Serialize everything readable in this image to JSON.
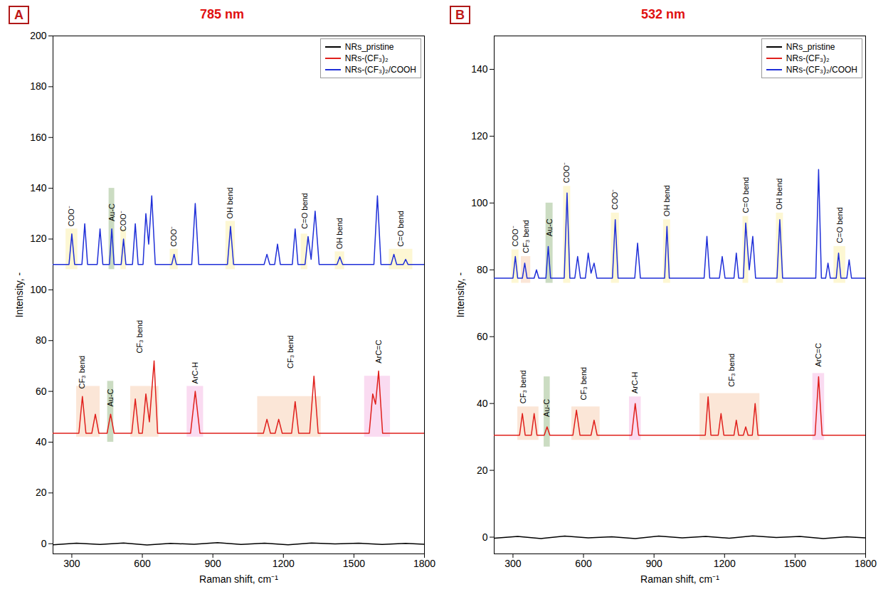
{
  "chart_data": [
    {
      "type": "line",
      "panel": "A",
      "title": "785 nm",
      "x_label": "Raman shift, cm⁻¹",
      "y_label": "Intensity, -",
      "xlim": [
        220,
        1800
      ],
      "xticks": [
        300,
        600,
        900,
        1200,
        1500,
        1800
      ],
      "ylim": [
        -4,
        200
      ],
      "yticks": [
        0,
        20,
        40,
        60,
        80,
        100,
        120,
        140,
        160,
        180,
        200
      ],
      "grid": false,
      "legend": "top-right",
      "series": [
        {
          "name": "NRs_pristine",
          "color": "#000000",
          "x": [
            220,
            320,
            420,
            520,
            620,
            720,
            820,
            920,
            1020,
            1120,
            1220,
            1320,
            1420,
            1520,
            1620,
            1720,
            1800
          ],
          "values": [
            -0.4,
            0.2,
            -0.3,
            0.3,
            -0.5,
            0.1,
            -0.2,
            0.4,
            -0.3,
            0.2,
            -0.4,
            0.3,
            -0.1,
            0.2,
            -0.3,
            0.1,
            -0.2
          ]
        },
        {
          "name": "NRs-(CF₃)₂",
          "color": "#e0201c",
          "x": [
            220,
            330,
            345,
            360,
            385,
            400,
            415,
            450,
            465,
            480,
            555,
            570,
            585,
            600,
            615,
            630,
            650,
            665,
            805,
            825,
            845,
            1115,
            1130,
            1145,
            1165,
            1180,
            1195,
            1235,
            1250,
            1265,
            1312,
            1330,
            1348,
            1565,
            1580,
            1592,
            1605,
            1622,
            1800
          ],
          "values": [
            43.5,
            43.5,
            58,
            43.5,
            43.5,
            51,
            43.5,
            43.5,
            51,
            43.5,
            43.5,
            57,
            43.5,
            43.5,
            59,
            48,
            72,
            43.5,
            43.5,
            60,
            43.5,
            43.5,
            49,
            43.5,
            43.5,
            49,
            43.5,
            43.5,
            56,
            43.5,
            43.5,
            66,
            43.5,
            43.5,
            59,
            55,
            68,
            43.5,
            43.5
          ]
        },
        {
          "name": "NRs-(CF₃)₂/COOH",
          "color": "#1f2fd8",
          "x": [
            220,
            288,
            300,
            312,
            343,
            355,
            367,
            408,
            420,
            432,
            460,
            470,
            480,
            510,
            520,
            530,
            558,
            570,
            582,
            603,
            615,
            627,
            640,
            655,
            725,
            735,
            745,
            810,
            825,
            840,
            962,
            975,
            988,
            1118,
            1130,
            1142,
            1163,
            1175,
            1187,
            1238,
            1250,
            1262,
            1292,
            1305,
            1318,
            1335,
            1352,
            1428,
            1440,
            1452,
            1585,
            1600,
            1615,
            1658,
            1670,
            1682,
            1710,
            1720,
            1730,
            1800
          ],
          "values": [
            110,
            110,
            122,
            110,
            110,
            126,
            110,
            110,
            124,
            110,
            110,
            124,
            110,
            110,
            120,
            110,
            110,
            126,
            110,
            110,
            130,
            118,
            137,
            110,
            110,
            114,
            110,
            110,
            134,
            110,
            110,
            125,
            110,
            110,
            114,
            110,
            110,
            118,
            110,
            110,
            124,
            110,
            110,
            121,
            112,
            131,
            110,
            110,
            113,
            110,
            110,
            137,
            110,
            110,
            114,
            110,
            110,
            112,
            110,
            110
          ]
        }
      ],
      "annotations": [
        {
          "text": "CF₃ bend",
          "x": 345,
          "y": 61,
          "band": {
            "x": [
              320,
              420
            ],
            "y": [
              42,
              62
            ]
          },
          "color": "#f8d5bd"
        },
        {
          "text": "Au-C",
          "x": 465,
          "y": 54,
          "band": {
            "x": [
              452,
              478
            ],
            "y": [
              40,
              64
            ]
          },
          "color": "#a9c49a"
        },
        {
          "text": "CF₃ bend",
          "x": 590,
          "y": 75,
          "band": {
            "x": [
              550,
              670
            ],
            "y": [
              42,
              62
            ]
          },
          "color": "#f8d5bd"
        },
        {
          "text": "ArC-H",
          "x": 825,
          "y": 63,
          "band": {
            "x": [
              790,
              860
            ],
            "y": [
              42,
              62
            ]
          },
          "color": "#f6c3e8"
        },
        {
          "text": "CF₃ bend",
          "x": 1230,
          "y": 69,
          "band": {
            "x": [
              1090,
              1360
            ],
            "y": [
              42,
              58
            ]
          },
          "color": "#f8d5bd"
        },
        {
          "text": "ArC=C",
          "x": 1605,
          "y": 71,
          "band": {
            "x": [
              1545,
              1655
            ],
            "y": [
              42,
              66
            ]
          },
          "color": "#f6c3e8"
        },
        {
          "text": "COO⁻",
          "x": 300,
          "y": 125,
          "band": {
            "x": [
              275,
              325
            ],
            "y": [
              108,
              124
            ]
          },
          "color": "#fbf2b5"
        },
        {
          "text": "Au-C",
          "x": 470,
          "y": 127,
          "band": {
            "x": [
              458,
              482
            ],
            "y": [
              108,
              140
            ]
          },
          "color": "#a9c49a"
        },
        {
          "text": "COO⁻",
          "x": 520,
          "y": 123,
          "band": {
            "x": [
              508,
              532
            ],
            "y": [
              108,
              124
            ]
          },
          "color": "#fbf2b5"
        },
        {
          "text": "COO⁻",
          "x": 735,
          "y": 117,
          "band": {
            "x": [
              718,
              752
            ],
            "y": [
              108,
              116
            ]
          },
          "color": "#fbf2b5"
        },
        {
          "text": "OH bend",
          "x": 975,
          "y": 128,
          "band": {
            "x": [
              955,
              995
            ],
            "y": [
              108,
              127
            ]
          },
          "color": "#fbf2b5"
        },
        {
          "text": "C=O bend",
          "x": 1290,
          "y": 124,
          "band": {
            "x": [
              1275,
              1303
            ],
            "y": [
              108,
              122
            ]
          },
          "color": "#fbf2b5"
        },
        {
          "text": "OH bend",
          "x": 1440,
          "y": 116,
          "band": {
            "x": [
              1420,
              1460
            ],
            "y": [
              108,
              115
            ]
          },
          "color": "#fbf2b5"
        },
        {
          "text": "C=O bend",
          "x": 1700,
          "y": 117,
          "band": {
            "x": [
              1650,
              1750
            ],
            "y": [
              108,
              116
            ]
          },
          "color": "#fbf2b5"
        }
      ]
    },
    {
      "type": "line",
      "panel": "B",
      "title": "532 nm",
      "x_label": "Raman shift, cm⁻¹",
      "y_label": "Intensity, -",
      "xlim": [
        220,
        1800
      ],
      "xticks": [
        300,
        600,
        900,
        1200,
        1500,
        1800
      ],
      "ylim": [
        -5,
        150
      ],
      "yticks": [
        0,
        20,
        40,
        60,
        80,
        100,
        120,
        140
      ],
      "grid": false,
      "legend": "top-right",
      "series": [
        {
          "name": "NRs_pristine",
          "color": "#000000",
          "x": [
            220,
            320,
            420,
            520,
            620,
            720,
            820,
            920,
            1020,
            1120,
            1220,
            1320,
            1420,
            1520,
            1620,
            1720,
            1800
          ],
          "values": [
            -0.3,
            0.2,
            -0.4,
            0.3,
            -0.2,
            0.1,
            -0.4,
            0.3,
            -0.2,
            0.2,
            -0.3,
            0.4,
            -0.1,
            0.2,
            -0.4,
            0.1,
            -0.2
          ]
        },
        {
          "name": "NRs-(CF₃)₂",
          "color": "#e0201c",
          "x": [
            220,
            328,
            340,
            352,
            378,
            390,
            402,
            433,
            445,
            457,
            555,
            570,
            585,
            632,
            645,
            658,
            805,
            820,
            835,
            1118,
            1130,
            1142,
            1173,
            1185,
            1197,
            1240,
            1250,
            1260,
            1280,
            1290,
            1300,
            1318,
            1330,
            1342,
            1585,
            1600,
            1615,
            1800
          ],
          "values": [
            30.5,
            30.5,
            37,
            30.5,
            30.5,
            37,
            30.5,
            30.5,
            33,
            30.5,
            30.5,
            38,
            30.5,
            30.5,
            35,
            30.5,
            30.5,
            40,
            30.5,
            30.5,
            42,
            30.5,
            30.5,
            37,
            30.5,
            30.5,
            35,
            30.5,
            30.5,
            33,
            30.5,
            30.5,
            40,
            30.5,
            30.5,
            48,
            30.5,
            30.5
          ]
        },
        {
          "name": "NRs-(CF₃)₂/COOH",
          "color": "#1f2fd8",
          "x": [
            220,
            300,
            310,
            320,
            340,
            350,
            360,
            390,
            400,
            410,
            440,
            450,
            460,
            518,
            530,
            542,
            563,
            575,
            587,
            608,
            620,
            632,
            645,
            657,
            723,
            735,
            747,
            818,
            830,
            842,
            945,
            955,
            965,
            1113,
            1125,
            1137,
            1178,
            1190,
            1202,
            1240,
            1250,
            1260,
            1280,
            1290,
            1305,
            1320,
            1332,
            1423,
            1435,
            1447,
            1588,
            1600,
            1612,
            1630,
            1640,
            1650,
            1675,
            1685,
            1695,
            1720,
            1730,
            1740,
            1800
          ],
          "values": [
            77.5,
            77.5,
            84,
            77.5,
            77.5,
            82,
            77.5,
            77.5,
            80,
            77.5,
            77.5,
            87,
            77.5,
            77.5,
            103,
            77.5,
            77.5,
            84,
            77.5,
            77.5,
            85,
            79,
            82,
            77.5,
            77.5,
            95,
            77.5,
            77.5,
            88,
            77.5,
            77.5,
            93,
            77.5,
            77.5,
            90,
            77.5,
            77.5,
            84,
            77.5,
            77.5,
            85,
            77.5,
            77.5,
            94,
            80,
            90,
            77.5,
            77.5,
            95,
            77.5,
            77.5,
            110,
            77.5,
            77.5,
            82,
            77.5,
            77.5,
            85,
            77.5,
            77.5,
            83,
            77.5,
            77.5
          ]
        }
      ],
      "annotations": [
        {
          "text": "CF₃ bend",
          "x": 345,
          "y": 40,
          "band": {
            "x": [
              320,
              410
            ],
            "y": [
              29,
              39
            ]
          },
          "color": "#f8d5bd"
        },
        {
          "text": "Au-C",
          "x": 445,
          "y": 36,
          "band": {
            "x": [
              432,
              458
            ],
            "y": [
              27,
              48
            ]
          },
          "color": "#a9c49a"
        },
        {
          "text": "CF₃ bend",
          "x": 600,
          "y": 41,
          "band": {
            "x": [
              550,
              670
            ],
            "y": [
              29,
              39
            ]
          },
          "color": "#f8d5bd"
        },
        {
          "text": "ArC-H",
          "x": 820,
          "y": 43,
          "band": {
            "x": [
              795,
              845
            ],
            "y": [
              29,
              42
            ]
          },
          "color": "#f6c3e8"
        },
        {
          "text": "CF₃ bend",
          "x": 1230,
          "y": 45,
          "band": {
            "x": [
              1095,
              1350
            ],
            "y": [
              29,
              43
            ]
          },
          "color": "#f8d5bd"
        },
        {
          "text": "ArC=C",
          "x": 1600,
          "y": 51,
          "band": {
            "x": [
              1575,
              1625
            ],
            "y": [
              29,
              49
            ]
          },
          "color": "#f6c3e8"
        },
        {
          "text": "COO⁻",
          "x": 310,
          "y": 87,
          "band": {
            "x": [
              295,
              325
            ],
            "y": [
              76,
              86
            ]
          },
          "color": "#fbf2b5"
        },
        {
          "text": "CF₃ bend",
          "x": 355,
          "y": 85,
          "band": {
            "x": [
              335,
              375
            ],
            "y": [
              76,
              84
            ]
          },
          "color": "#f8d5bd"
        },
        {
          "text": "Au-C",
          "x": 455,
          "y": 90,
          "band": {
            "x": [
              440,
              470
            ],
            "y": [
              76,
              100
            ]
          },
          "color": "#a9c49a"
        },
        {
          "text": "COO⁻",
          "x": 530,
          "y": 106,
          "band": {
            "x": [
              515,
              545
            ],
            "y": [
              76,
              105
            ]
          },
          "color": "#fbf2b5"
        },
        {
          "text": "COO⁻",
          "x": 735,
          "y": 98,
          "band": {
            "x": [
              718,
              752
            ],
            "y": [
              76,
              97
            ]
          },
          "color": "#fbf2b5"
        },
        {
          "text": "OH bend",
          "x": 955,
          "y": 96,
          "band": {
            "x": [
              940,
              970
            ],
            "y": [
              76,
              95
            ]
          },
          "color": "#fbf2b5"
        },
        {
          "text": "C=O bend",
          "x": 1290,
          "y": 97,
          "band": {
            "x": [
              1278,
              1302
            ],
            "y": [
              76,
              96
            ]
          },
          "color": "#fbf2b5"
        },
        {
          "text": "OH bend",
          "x": 1435,
          "y": 98,
          "band": {
            "x": [
              1420,
              1450
            ],
            "y": [
              76,
              97
            ]
          },
          "color": "#fbf2b5"
        },
        {
          "text": "C=O bend",
          "x": 1690,
          "y": 88,
          "band": {
            "x": [
              1665,
              1715
            ],
            "y": [
              76,
              87
            ]
          },
          "color": "#fbf2b5"
        }
      ]
    }
  ]
}
